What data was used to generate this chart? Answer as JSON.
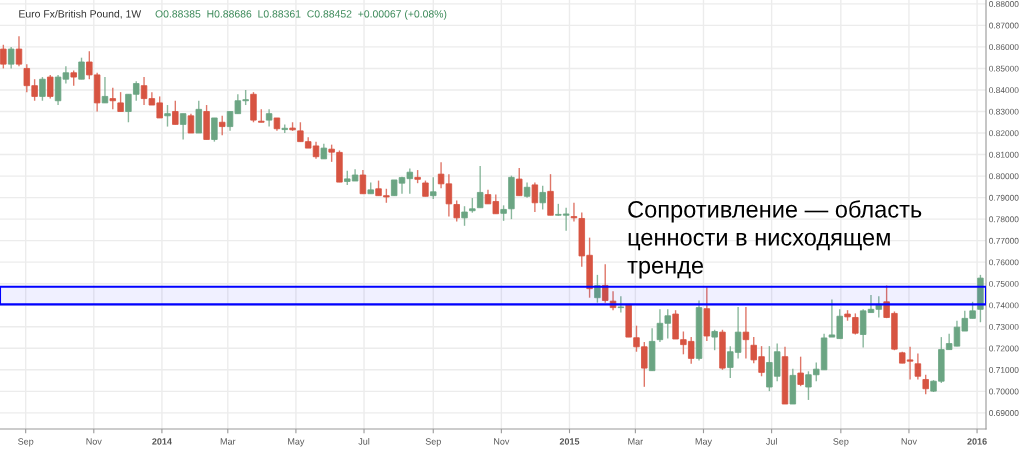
{
  "chart_data": {
    "type": "candlestick",
    "title": "Euro Fx/British Pound, 1W",
    "subtitle": "O0.88385  H0.88686  L0.88361  C0.88452  +0.00067 (+0.08%)",
    "x": [
      "2013-08-12",
      "2013-08-19",
      "2013-08-26",
      "2013-09-02",
      "2013-09-09",
      "2013-09-16",
      "2013-09-23",
      "2013-09-30",
      "2013-10-07",
      "2013-10-14",
      "2013-10-21",
      "2013-10-28",
      "2013-11-04",
      "2013-11-11",
      "2013-11-18",
      "2013-11-25",
      "2013-12-02",
      "2013-12-09",
      "2013-12-16",
      "2013-12-23",
      "2013-12-30",
      "2014-01-06",
      "2014-01-13",
      "2014-01-20",
      "2014-01-27",
      "2014-02-03",
      "2014-02-10",
      "2014-02-17",
      "2014-02-24",
      "2014-03-03",
      "2014-03-10",
      "2014-03-17",
      "2014-03-24",
      "2014-03-31",
      "2014-04-07",
      "2014-04-14",
      "2014-04-21",
      "2014-04-28",
      "2014-05-05",
      "2014-05-12",
      "2014-05-19",
      "2014-05-26",
      "2014-06-02",
      "2014-06-09",
      "2014-06-16",
      "2014-06-23",
      "2014-06-30",
      "2014-07-07",
      "2014-07-14",
      "2014-07-21",
      "2014-07-28",
      "2014-08-04",
      "2014-08-11",
      "2014-08-18",
      "2014-08-25",
      "2014-09-01",
      "2014-09-08",
      "2014-09-15",
      "2014-09-22",
      "2014-09-29",
      "2014-10-06",
      "2014-10-13",
      "2014-10-20",
      "2014-10-27",
      "2014-11-03",
      "2014-11-10",
      "2014-11-17",
      "2014-11-24",
      "2014-12-01",
      "2014-12-08",
      "2014-12-15",
      "2014-12-22",
      "2014-12-29",
      "2015-01-05",
      "2015-01-12",
      "2015-01-19",
      "2015-01-26",
      "2015-02-02",
      "2015-02-09",
      "2015-02-16",
      "2015-02-23",
      "2015-03-02",
      "2015-03-09",
      "2015-03-16",
      "2015-03-23",
      "2015-03-30",
      "2015-04-06",
      "2015-04-13",
      "2015-04-20",
      "2015-04-27",
      "2015-05-04",
      "2015-05-11",
      "2015-05-18",
      "2015-05-25",
      "2015-06-01",
      "2015-06-08",
      "2015-06-15",
      "2015-06-22",
      "2015-06-29",
      "2015-07-06",
      "2015-07-13",
      "2015-07-20",
      "2015-07-27",
      "2015-08-03",
      "2015-08-10",
      "2015-08-17",
      "2015-08-24",
      "2015-08-31",
      "2015-09-07",
      "2015-09-14",
      "2015-09-21",
      "2015-09-28",
      "2015-10-05",
      "2015-10-12",
      "2015-10-19",
      "2015-10-26",
      "2015-11-02",
      "2015-11-09",
      "2015-11-16",
      "2015-11-23",
      "2015-11-30",
      "2015-12-07",
      "2015-12-14",
      "2015-12-21",
      "2015-12-28",
      "2016-01-04"
    ],
    "ohlc": [
      [
        0.859,
        0.861,
        0.85,
        0.852
      ],
      [
        0.852,
        0.86,
        0.85,
        0.859
      ],
      [
        0.859,
        0.865,
        0.851,
        0.852
      ],
      [
        0.85,
        0.852,
        0.839,
        0.842
      ],
      [
        0.842,
        0.845,
        0.835,
        0.837
      ],
      [
        0.837,
        0.846,
        0.835,
        0.845
      ],
      [
        0.846,
        0.847,
        0.836,
        0.837
      ],
      [
        0.835,
        0.847,
        0.833,
        0.846
      ],
      [
        0.845,
        0.851,
        0.843,
        0.848
      ],
      [
        0.848,
        0.849,
        0.842,
        0.846
      ],
      [
        0.845,
        0.855,
        0.845,
        0.853
      ],
      [
        0.853,
        0.858,
        0.845,
        0.847
      ],
      [
        0.847,
        0.848,
        0.83,
        0.834
      ],
      [
        0.834,
        0.846,
        0.834,
        0.837
      ],
      [
        0.836,
        0.841,
        0.831,
        0.835
      ],
      [
        0.834,
        0.839,
        0.83,
        0.83
      ],
      [
        0.83,
        0.838,
        0.825,
        0.838
      ],
      [
        0.838,
        0.844,
        0.835,
        0.843
      ],
      [
        0.842,
        0.846,
        0.833,
        0.836
      ],
      [
        0.836,
        0.839,
        0.833,
        0.833
      ],
      [
        0.834,
        0.837,
        0.827,
        0.827
      ],
      [
        0.828,
        0.833,
        0.823,
        0.829
      ],
      [
        0.83,
        0.835,
        0.824,
        0.824
      ],
      [
        0.824,
        0.829,
        0.817,
        0.829
      ],
      [
        0.828,
        0.829,
        0.82,
        0.82
      ],
      [
        0.82,
        0.835,
        0.82,
        0.831
      ],
      [
        0.83,
        0.833,
        0.817,
        0.817
      ],
      [
        0.817,
        0.827,
        0.816,
        0.827
      ],
      [
        0.825,
        0.828,
        0.819,
        0.823
      ],
      [
        0.823,
        0.83,
        0.821,
        0.83
      ],
      [
        0.829,
        0.838,
        0.829,
        0.835
      ],
      [
        0.835,
        0.84,
        0.833,
        0.8355
      ],
      [
        0.838,
        0.839,
        0.825,
        0.826
      ],
      [
        0.8255,
        0.831,
        0.825,
        0.825
      ],
      [
        0.826,
        0.831,
        0.823,
        0.829
      ],
      [
        0.827,
        0.827,
        0.821,
        0.822
      ],
      [
        0.8216,
        0.824,
        0.82,
        0.8222
      ],
      [
        0.8223,
        0.825,
        0.821,
        0.8215
      ],
      [
        0.821,
        0.825,
        0.816,
        0.816
      ],
      [
        0.816,
        0.818,
        0.813,
        0.813
      ],
      [
        0.814,
        0.816,
        0.808,
        0.809
      ],
      [
        0.808,
        0.815,
        0.808,
        0.813
      ],
      [
        0.8125,
        0.8146,
        0.8066,
        0.8111
      ],
      [
        0.811,
        0.8119,
        0.7972,
        0.7972
      ],
      [
        0.7975,
        0.8025,
        0.7959,
        0.7987
      ],
      [
        0.7977,
        0.8032,
        0.7977,
        0.8005
      ],
      [
        0.8005,
        0.8028,
        0.7918,
        0.7918
      ],
      [
        0.7918,
        0.797,
        0.7918,
        0.7936
      ],
      [
        0.7941,
        0.7979,
        0.7909,
        0.7909
      ],
      [
        0.7909,
        0.7941,
        0.7876,
        0.7903
      ],
      [
        0.7909,
        0.7982,
        0.7909,
        0.7982
      ],
      [
        0.7967,
        0.7997,
        0.7918,
        0.7993
      ],
      [
        0.7988,
        0.8035,
        0.7918,
        0.8018
      ],
      [
        0.7994,
        0.8028,
        0.7967,
        0.7985
      ],
      [
        0.7968,
        0.7979,
        0.7906,
        0.7906
      ],
      [
        0.7909,
        0.7994,
        0.7894,
        0.7927
      ],
      [
        0.8009,
        0.8064,
        0.7944,
        0.7964
      ],
      [
        0.7964,
        0.8009,
        0.7812,
        0.7871
      ],
      [
        0.7868,
        0.7886,
        0.7789,
        0.7806
      ],
      [
        0.7806,
        0.786,
        0.7769,
        0.7833
      ],
      [
        0.7839,
        0.7898,
        0.783,
        0.7848
      ],
      [
        0.7853,
        0.8047,
        0.7853,
        0.7924
      ],
      [
        0.7914,
        0.7936,
        0.7871,
        0.7871
      ],
      [
        0.7882,
        0.7914,
        0.7825,
        0.7825
      ],
      [
        0.7827,
        0.7864,
        0.7792,
        0.7845
      ],
      [
        0.7848,
        0.8002,
        0.78,
        0.7994
      ],
      [
        0.7986,
        0.8038,
        0.7909,
        0.7909
      ],
      [
        0.7906,
        0.797,
        0.7899,
        0.7948
      ],
      [
        0.7959,
        0.797,
        0.7833,
        0.7876
      ],
      [
        0.7876,
        0.7955,
        0.7845,
        0.7924
      ],
      [
        0.7929,
        0.8009,
        0.7818,
        0.7818
      ],
      [
        0.7818,
        0.7871,
        0.7816,
        0.7822
      ],
      [
        0.7818,
        0.7853,
        0.7746,
        0.7824
      ],
      [
        0.7812,
        0.7876,
        0.7789,
        0.7806
      ],
      [
        0.7803,
        0.7831,
        0.7579,
        0.7629
      ],
      [
        0.7632,
        0.7714,
        0.7435,
        0.7477
      ],
      [
        0.7435,
        0.7541,
        0.7412,
        0.7491
      ],
      [
        0.7492,
        0.759,
        0.7412,
        0.7422
      ],
      [
        0.7419,
        0.7465,
        0.7377,
        0.7389
      ],
      [
        0.7389,
        0.7442,
        0.7366,
        0.7392
      ],
      [
        0.7404,
        0.7404,
        0.7252,
        0.7252
      ],
      [
        0.7249,
        0.7305,
        0.7184,
        0.7207
      ],
      [
        0.7207,
        0.7229,
        0.7021,
        0.7108
      ],
      [
        0.7096,
        0.7293,
        0.7096,
        0.7232
      ],
      [
        0.724,
        0.7381,
        0.7229,
        0.7316
      ],
      [
        0.7316,
        0.7381,
        0.7245,
        0.7351
      ],
      [
        0.7359,
        0.7377,
        0.7243,
        0.7243
      ],
      [
        0.724,
        0.7278,
        0.7172,
        0.7217
      ],
      [
        0.7232,
        0.7252,
        0.7128,
        0.7153
      ],
      [
        0.7153,
        0.7422,
        0.7143,
        0.7389
      ],
      [
        0.7384,
        0.7483,
        0.7234,
        0.7257
      ],
      [
        0.7252,
        0.7286,
        0.7191,
        0.7278
      ],
      [
        0.7275,
        0.7286,
        0.71,
        0.7108
      ],
      [
        0.7111,
        0.721,
        0.7062,
        0.7184
      ],
      [
        0.7181,
        0.7392,
        0.7153,
        0.7275
      ],
      [
        0.7275,
        0.7392,
        0.7153,
        0.724
      ],
      [
        0.7214,
        0.7252,
        0.7131,
        0.7146
      ],
      [
        0.7161,
        0.721,
        0.707,
        0.7088
      ],
      [
        0.702,
        0.721,
        0.7001,
        0.7134
      ],
      [
        0.707,
        0.7222,
        0.7047,
        0.7184
      ],
      [
        0.7161,
        0.7207,
        0.6941,
        0.6941
      ],
      [
        0.6941,
        0.7105,
        0.6941,
        0.7074
      ],
      [
        0.7085,
        0.7161,
        0.7024,
        0.7032
      ],
      [
        0.702,
        0.7093,
        0.696,
        0.7077
      ],
      [
        0.7077,
        0.7134,
        0.7047,
        0.7103
      ],
      [
        0.71,
        0.7267,
        0.71,
        0.7248
      ],
      [
        0.7252,
        0.7427,
        0.7252,
        0.7262
      ],
      [
        0.7245,
        0.7381,
        0.7245,
        0.7349
      ],
      [
        0.7359,
        0.7377,
        0.7328,
        0.7346
      ],
      [
        0.7343,
        0.7362,
        0.7264,
        0.727
      ],
      [
        0.7264,
        0.7381,
        0.7204,
        0.7374
      ],
      [
        0.7366,
        0.7447,
        0.7366,
        0.7381
      ],
      [
        0.7381,
        0.7442,
        0.7343,
        0.7404
      ],
      [
        0.7416,
        0.7492,
        0.734,
        0.7343
      ],
      [
        0.7362,
        0.7371,
        0.7191,
        0.7196
      ],
      [
        0.7179,
        0.7184,
        0.7131,
        0.7131
      ],
      [
        0.7146,
        0.7207,
        0.7055,
        0.714
      ],
      [
        0.7128,
        0.7176,
        0.7055,
        0.707
      ],
      [
        0.7055,
        0.7077,
        0.6986,
        0.7012
      ],
      [
        0.7001,
        0.7052,
        0.6997,
        0.7047
      ],
      [
        0.7047,
        0.7252,
        0.7039,
        0.7194
      ],
      [
        0.7194,
        0.7267,
        0.7194,
        0.7222
      ],
      [
        0.721,
        0.7328,
        0.721,
        0.7298
      ],
      [
        0.728,
        0.7374,
        0.728,
        0.7339
      ],
      [
        0.7339,
        0.7416,
        0.7339,
        0.7374
      ],
      [
        0.7381,
        0.7541,
        0.7321,
        0.7526
      ]
    ],
    "colors": [
      "#d75442",
      "#6ba583",
      "#d75442",
      "#d75442",
      "#d75442",
      "#6ba583",
      "#d75442",
      "#6ba583",
      "#6ba583",
      "#d75442",
      "#6ba583",
      "#d75442",
      "#d75442",
      "#6ba583",
      "#d75442",
      "#d75442",
      "#6ba583",
      "#6ba583",
      "#d75442",
      "#d75442",
      "#d75442",
      "#6ba583",
      "#d75442",
      "#6ba583",
      "#d75442",
      "#6ba583",
      "#d75442",
      "#6ba583",
      "#d75442",
      "#6ba583",
      "#6ba583",
      "#6ba583",
      "#d75442",
      "#d75442",
      "#6ba583",
      "#d75442",
      "#6ba583",
      "#d75442",
      "#d75442",
      "#d75442",
      "#d75442",
      "#6ba583",
      "#d75442",
      "#d75442",
      "#6ba583",
      "#6ba583",
      "#d75442",
      "#6ba583",
      "#d75442",
      "#d75442",
      "#6ba583",
      "#6ba583",
      "#6ba583",
      "#d75442",
      "#d75442",
      "#6ba583",
      "#d75442",
      "#d75442",
      "#d75442",
      "#6ba583",
      "#6ba583",
      "#6ba583",
      "#d75442",
      "#d75442",
      "#6ba583",
      "#6ba583",
      "#d75442",
      "#6ba583",
      "#d75442",
      "#6ba583",
      "#d75442",
      "#6ba583",
      "#6ba583",
      "#d75442",
      "#d75442",
      "#d75442",
      "#6ba583",
      "#d75442",
      "#d75442",
      "#6ba583",
      "#d75442",
      "#d75442",
      "#d75442",
      "#6ba583",
      "#6ba583",
      "#6ba583",
      "#d75442",
      "#d75442",
      "#d75442",
      "#6ba583",
      "#d75442",
      "#6ba583",
      "#d75442",
      "#6ba583",
      "#6ba583",
      "#d75442",
      "#d75442",
      "#d75442",
      "#6ba583",
      "#6ba583",
      "#d75442",
      "#6ba583",
      "#d75442",
      "#6ba583",
      "#6ba583",
      "#6ba583",
      "#6ba583",
      "#6ba583",
      "#d75442",
      "#d75442",
      "#6ba583",
      "#6ba583",
      "#6ba583",
      "#d75442",
      "#d75442",
      "#d75442",
      "#d75442",
      "#d75442",
      "#d75442",
      "#6ba583",
      "#6ba583",
      "#6ba583",
      "#6ba583",
      "#6ba583",
      "#6ba583",
      "#6ba583"
    ],
    "xlim": [
      "2013-08-09",
      "2016-01-09"
    ],
    "xticks": [
      {
        "value": "2013-09-01",
        "label": "Sep"
      },
      {
        "value": "2013-11-01",
        "label": "Nov"
      },
      {
        "value": "2014-01-01",
        "label": "2014"
      },
      {
        "value": "2014-03-01",
        "label": "Mar"
      },
      {
        "value": "2014-05-01",
        "label": "May"
      },
      {
        "value": "2014-07-01",
        "label": "Jul"
      },
      {
        "value": "2014-09-01",
        "label": "Sep"
      },
      {
        "value": "2014-11-01",
        "label": "Nov"
      },
      {
        "value": "2015-01-01",
        "label": "2015"
      },
      {
        "value": "2015-03-01",
        "label": "Mar"
      },
      {
        "value": "2015-05-01",
        "label": "May"
      },
      {
        "value": "2015-07-01",
        "label": "Jul"
      },
      {
        "value": "2015-09-01",
        "label": "Sep"
      },
      {
        "value": "2015-11-01",
        "label": "Nov"
      },
      {
        "value": "2016-01-01",
        "label": "2016"
      }
    ],
    "ylim": [
      0.6825,
      0.8818
    ],
    "yticks": [
      {
        "value": 0.69,
        "label": "0.69000"
      },
      {
        "value": 0.7,
        "label": "0.70000"
      },
      {
        "value": 0.71,
        "label": "0.71000"
      },
      {
        "value": 0.72,
        "label": "0.72000"
      },
      {
        "value": 0.73,
        "label": "0.73000"
      },
      {
        "value": 0.74,
        "label": "0.74000"
      },
      {
        "value": 0.75,
        "label": "0.75000"
      },
      {
        "value": 0.76,
        "label": "0.76000"
      },
      {
        "value": 0.77,
        "label": "0.77000"
      },
      {
        "value": 0.78,
        "label": "0.78000"
      },
      {
        "value": 0.79,
        "label": "0.79000"
      },
      {
        "value": 0.8,
        "label": "0.80000"
      },
      {
        "value": 0.81,
        "label": "0.81000"
      },
      {
        "value": 0.82,
        "label": "0.82000"
      },
      {
        "value": 0.83,
        "label": "0.83000"
      },
      {
        "value": 0.84,
        "label": "0.84000"
      },
      {
        "value": 0.85,
        "label": "0.85000"
      },
      {
        "value": 0.86,
        "label": "0.86000"
      },
      {
        "value": 0.87,
        "label": "0.87000"
      },
      {
        "value": 0.88,
        "label": "0.88000"
      }
    ],
    "bands": [
      {
        "axis": "y",
        "from": 0.7404,
        "to": 0.7486,
        "label": "Сопротивление — область\nценности в нисходящем\nтренде",
        "color": "#0000ff"
      }
    ],
    "grid": true,
    "legend": false
  }
}
